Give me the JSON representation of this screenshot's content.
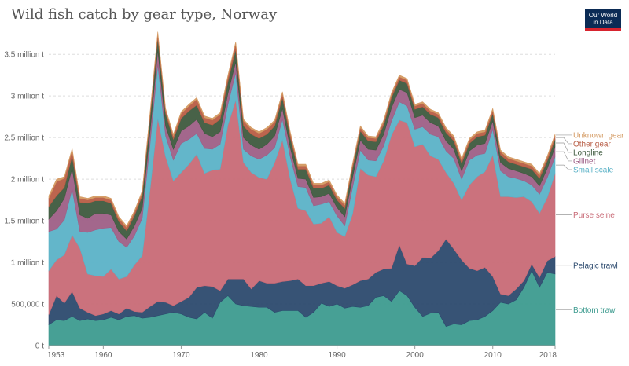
{
  "title": "Wild fish catch by gear type, Norway",
  "logo": {
    "line1": "Our World",
    "line2": "in Data"
  },
  "chart_data": {
    "type": "area",
    "stacked": true,
    "x": [
      1953,
      1954,
      1955,
      1956,
      1957,
      1958,
      1959,
      1960,
      1961,
      1962,
      1963,
      1964,
      1965,
      1966,
      1967,
      1968,
      1969,
      1970,
      1971,
      1972,
      1973,
      1974,
      1975,
      1976,
      1977,
      1978,
      1979,
      1980,
      1981,
      1982,
      1983,
      1984,
      1985,
      1986,
      1987,
      1988,
      1989,
      1990,
      1991,
      1992,
      1993,
      1994,
      1995,
      1996,
      1997,
      1998,
      1999,
      2000,
      2001,
      2002,
      2003,
      2004,
      2005,
      2006,
      2007,
      2008,
      2009,
      2010,
      2011,
      2012,
      2013,
      2014,
      2015,
      2016,
      2017,
      2018
    ],
    "ylim": [
      0,
      3700000
    ],
    "y_ticks": [
      0,
      500000,
      1000000,
      1500000,
      2000000,
      2500000,
      3000000,
      3500000
    ],
    "y_tick_labels": [
      "0 t",
      "500,000 t",
      "1 million t",
      "1.5 million t",
      "2 million t",
      "2.5 million t",
      "3 million t",
      "3.5 million t"
    ],
    "x_ticks": [
      1953,
      1960,
      1970,
      1980,
      1990,
      2000,
      2010,
      2018
    ],
    "x_tick_labels": [
      "1953",
      "1960",
      "1970",
      "1980",
      "1990",
      "2000",
      "2010",
      "2018"
    ],
    "grid": "horizontal dashed",
    "legend": "right, labels at series end",
    "series": [
      {
        "name": "Bottom trawl",
        "color": "#3d9b8f",
        "values": [
          250000,
          310000,
          300000,
          350000,
          300000,
          320000,
          300000,
          310000,
          340000,
          310000,
          350000,
          360000,
          330000,
          340000,
          360000,
          380000,
          400000,
          380000,
          340000,
          320000,
          400000,
          330000,
          520000,
          600000,
          500000,
          480000,
          470000,
          460000,
          460000,
          400000,
          420000,
          420000,
          420000,
          340000,
          400000,
          510000,
          470000,
          500000,
          450000,
          470000,
          460000,
          480000,
          580000,
          600000,
          530000,
          660000,
          600000,
          460000,
          350000,
          390000,
          400000,
          230000,
          260000,
          250000,
          300000,
          310000,
          350000,
          420000,
          520000,
          500000,
          550000,
          700000,
          900000,
          700000,
          880000,
          860000
        ]
      },
      {
        "name": "Pelagic trawl",
        "color": "#2c4a6e",
        "values": [
          120000,
          290000,
          210000,
          300000,
          150000,
          80000,
          60000,
          70000,
          80000,
          70000,
          100000,
          50000,
          70000,
          130000,
          170000,
          140000,
          80000,
          150000,
          240000,
          380000,
          320000,
          380000,
          140000,
          200000,
          300000,
          320000,
          210000,
          320000,
          290000,
          350000,
          350000,
          360000,
          380000,
          380000,
          320000,
          240000,
          300000,
          220000,
          240000,
          260000,
          320000,
          320000,
          300000,
          320000,
          400000,
          550000,
          380000,
          500000,
          710000,
          660000,
          740000,
          1050000,
          900000,
          780000,
          630000,
          590000,
          590000,
          410000,
          100000,
          100000,
          130000,
          80000,
          80000,
          120000,
          140000,
          210000
        ]
      },
      {
        "name": "Purse seine",
        "color": "#c86a76",
        "values": [
          530000,
          430000,
          580000,
          680000,
          720000,
          460000,
          480000,
          450000,
          500000,
          420000,
          380000,
          560000,
          680000,
          1400000,
          2200000,
          1750000,
          1500000,
          1550000,
          1600000,
          1600000,
          1350000,
          1400000,
          1460000,
          1850000,
          2150000,
          1400000,
          1400000,
          1240000,
          1250000,
          1450000,
          1700000,
          1220000,
          850000,
          900000,
          740000,
          720000,
          780000,
          640000,
          620000,
          850000,
          1350000,
          1250000,
          1150000,
          1300000,
          1600000,
          1500000,
          1700000,
          1430000,
          1360000,
          1230000,
          1100000,
          800000,
          790000,
          720000,
          1000000,
          1130000,
          1150000,
          1460000,
          1170000,
          1190000,
          1100000,
          1010000,
          750000,
          770000,
          760000,
          1000000
        ]
      },
      {
        "name": "Small scale",
        "color": "#5bb2c7",
        "values": [
          470000,
          370000,
          420000,
          550000,
          200000,
          500000,
          550000,
          580000,
          500000,
          450000,
          350000,
          350000,
          450000,
          550000,
          650000,
          250000,
          250000,
          350000,
          300000,
          250000,
          300000,
          250000,
          300000,
          250000,
          330000,
          160000,
          200000,
          220000,
          290000,
          180000,
          250000,
          270000,
          260000,
          280000,
          220000,
          230000,
          180000,
          200000,
          130000,
          320000,
          220000,
          180000,
          190000,
          180000,
          170000,
          220000,
          200000,
          210000,
          210000,
          260000,
          270000,
          260000,
          300000,
          250000,
          300000,
          260000,
          220000,
          310000,
          310000,
          240000,
          230000,
          190000,
          200000,
          230000,
          240000,
          200000
        ]
      },
      {
        "name": "Gillnet",
        "color": "#9e5f86",
        "values": [
          150000,
          220000,
          260000,
          250000,
          200000,
          170000,
          200000,
          180000,
          150000,
          120000,
          100000,
          120000,
          120000,
          150000,
          170000,
          120000,
          130000,
          150000,
          160000,
          170000,
          180000,
          150000,
          150000,
          130000,
          130000,
          140000,
          130000,
          120000,
          130000,
          140000,
          130000,
          110000,
          100000,
          100000,
          100000,
          90000,
          100000,
          100000,
          110000,
          120000,
          120000,
          130000,
          130000,
          140000,
          160000,
          150000,
          160000,
          140000,
          140000,
          140000,
          130000,
          120000,
          110000,
          100000,
          110000,
          120000,
          120000,
          100000,
          100000,
          100000,
          90000,
          90000,
          100000,
          100000,
          110000,
          120000
        ]
      },
      {
        "name": "Longline",
        "color": "#3e5a3e",
        "values": [
          150000,
          180000,
          130000,
          150000,
          150000,
          180000,
          150000,
          150000,
          140000,
          120000,
          100000,
          120000,
          150000,
          160000,
          150000,
          150000,
          120000,
          150000,
          180000,
          170000,
          130000,
          140000,
          150000,
          140000,
          150000,
          140000,
          130000,
          130000,
          120000,
          120000,
          130000,
          120000,
          110000,
          120000,
          110000,
          100000,
          100000,
          90000,
          100000,
          110000,
          110000,
          100000,
          100000,
          110000,
          120000,
          110000,
          110000,
          100000,
          100000,
          100000,
          100000,
          100000,
          100000,
          90000,
          90000,
          100000,
          100000,
          90000,
          90000,
          80000,
          80000,
          80000,
          90000,
          90000,
          90000,
          90000
        ]
      },
      {
        "name": "Other gear",
        "color": "#b85d45",
        "values": [
          100000,
          170000,
          110000,
          70000,
          50000,
          40000,
          40000,
          40000,
          40000,
          40000,
          40000,
          40000,
          40000,
          50000,
          50000,
          40000,
          40000,
          60000,
          60000,
          70000,
          60000,
          60000,
          60000,
          60000,
          70000,
          60000,
          60000,
          60000,
          60000,
          50000,
          50000,
          50000,
          40000,
          40000,
          40000,
          40000,
          40000,
          40000,
          40000,
          40000,
          40000,
          40000,
          40000,
          40000,
          40000,
          40000,
          40000,
          40000,
          40000,
          40000,
          40000,
          40000,
          40000,
          40000,
          40000,
          40000,
          40000,
          40000,
          40000,
          40000,
          40000,
          40000,
          40000,
          40000,
          40000,
          40000
        ]
      },
      {
        "name": "Unknown gear",
        "color": "#d49a62",
        "values": [
          30000,
          30000,
          20000,
          20000,
          20000,
          20000,
          20000,
          20000,
          20000,
          20000,
          20000,
          20000,
          20000,
          20000,
          20000,
          20000,
          20000,
          20000,
          20000,
          20000,
          20000,
          20000,
          20000,
          20000,
          20000,
          20000,
          20000,
          20000,
          20000,
          20000,
          20000,
          20000,
          20000,
          20000,
          20000,
          20000,
          20000,
          20000,
          20000,
          20000,
          20000,
          20000,
          20000,
          20000,
          20000,
          20000,
          20000,
          20000,
          20000,
          20000,
          20000,
          20000,
          20000,
          20000,
          20000,
          20000,
          20000,
          20000,
          20000,
          20000,
          20000,
          20000,
          20000,
          20000,
          20000,
          20000
        ]
      }
    ]
  }
}
